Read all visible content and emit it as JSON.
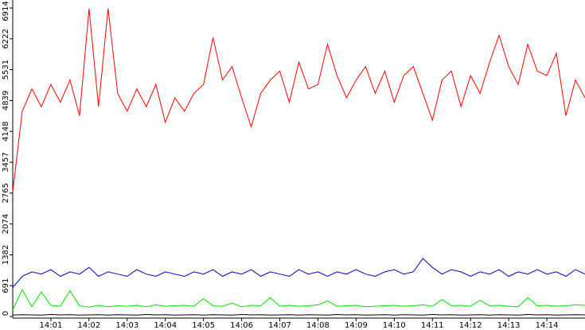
{
  "chart_data": {
    "type": "line",
    "x": [
      0,
      0.25,
      0.5,
      0.75,
      1,
      1.25,
      1.5,
      1.75,
      2,
      2.25,
      2.5,
      2.75,
      3,
      3.25,
      3.5,
      3.75,
      4,
      4.25,
      4.5,
      4.75,
      5,
      5.25,
      5.5,
      5.75,
      6,
      6.25,
      6.5,
      6.75,
      7,
      7.25,
      7.5,
      7.75,
      8,
      8.25,
      8.5,
      8.75,
      9,
      9.25,
      9.5,
      9.75,
      10,
      10.25,
      10.5,
      10.75,
      11,
      11.25,
      11.5,
      11.75,
      12,
      12.25,
      12.5,
      12.75,
      13,
      13.25,
      13.5,
      13.75,
      14,
      14.25,
      14.5,
      14.75,
      15
    ],
    "series": [
      {
        "color": "#ff0000",
        "values": [
          2800,
          4600,
          5100,
          4700,
          5200,
          4800,
          5300,
          4500,
          6900,
          4700,
          6900,
          5000,
          4600,
          5100,
          4700,
          5200,
          4350,
          4900,
          4600,
          5000,
          5200,
          6250,
          5300,
          5600,
          4900,
          4250,
          5000,
          5300,
          5500,
          4800,
          5700,
          5100,
          5200,
          6100,
          5400,
          4900,
          5300,
          5600,
          5000,
          5500,
          4800,
          5400,
          5600,
          5000,
          4400,
          5300,
          5500,
          4700,
          5400,
          5000,
          5700,
          6300,
          5600,
          5200,
          6100,
          5500,
          5400,
          5900,
          4500,
          5300,
          4900
        ]
      },
      {
        "color": "#0000c0",
        "values": [
          650,
          900,
          1000,
          950,
          1050,
          900,
          1000,
          950,
          1100,
          900,
          1000,
          950,
          900,
          1050,
          950,
          900,
          1000,
          950,
          900,
          1000,
          950,
          1050,
          900,
          1000,
          950,
          1050,
          900,
          1000,
          950,
          900,
          1050,
          950,
          1000,
          900,
          1000,
          950,
          1050,
          950,
          900,
          1000,
          1050,
          950,
          1000,
          1300,
          1100,
          950,
          1050,
          1000,
          900,
          1000,
          950,
          1050,
          900,
          1000,
          950,
          1050,
          950,
          1000,
          900,
          1050,
          950
        ]
      },
      {
        "color": "#00e000",
        "values": [
          150,
          600,
          220,
          550,
          250,
          230,
          580,
          240,
          210,
          250,
          220,
          240,
          230,
          250,
          220,
          260,
          230,
          240,
          250,
          230,
          400,
          240,
          230,
          300,
          220,
          250,
          240,
          420,
          230,
          250,
          230,
          240,
          260,
          350,
          230,
          240,
          250,
          220,
          230,
          240,
          250,
          230,
          240,
          260,
          230,
          380,
          240,
          250,
          230,
          360,
          240,
          250,
          230,
          220,
          420,
          240,
          250,
          230,
          240,
          260,
          250
        ]
      },
      {
        "color": "#000000",
        "values": [
          30,
          40,
          35,
          30,
          45,
          35,
          40,
          30,
          35,
          40,
          30,
          40,
          35,
          30,
          45,
          35,
          40,
          30,
          35,
          40,
          30,
          40,
          35,
          30,
          45,
          35,
          40,
          30,
          35,
          40,
          30,
          40,
          35,
          30,
          45,
          35,
          40,
          30,
          35,
          40,
          30,
          40,
          35,
          30,
          45,
          35,
          40,
          30,
          35,
          40,
          30,
          40,
          35,
          30,
          45,
          35,
          40,
          30,
          35,
          40,
          35
        ]
      }
    ],
    "xlim": [
      0,
      15
    ],
    "xticks": [
      {
        "value": 1,
        "label": "14:01"
      },
      {
        "value": 2,
        "label": "14:02"
      },
      {
        "value": 3,
        "label": "14:03"
      },
      {
        "value": 4,
        "label": "14:04"
      },
      {
        "value": 5,
        "label": "14:05"
      },
      {
        "value": 6,
        "label": "14:06"
      },
      {
        "value": 7,
        "label": "14:07"
      },
      {
        "value": 8,
        "label": "14:08"
      },
      {
        "value": 9,
        "label": "14:09"
      },
      {
        "value": 10,
        "label": "14:10"
      },
      {
        "value": 11,
        "label": "14:11"
      },
      {
        "value": 12,
        "label": "14:12"
      },
      {
        "value": 13,
        "label": "14:13"
      },
      {
        "value": 14,
        "label": "14:14"
      }
    ],
    "ylim": [
      0,
      6914
    ],
    "yticks": [
      0,
      691,
      1382,
      2074,
      2765,
      3457,
      4148,
      4839,
      5531,
      6222,
      6914
    ]
  }
}
